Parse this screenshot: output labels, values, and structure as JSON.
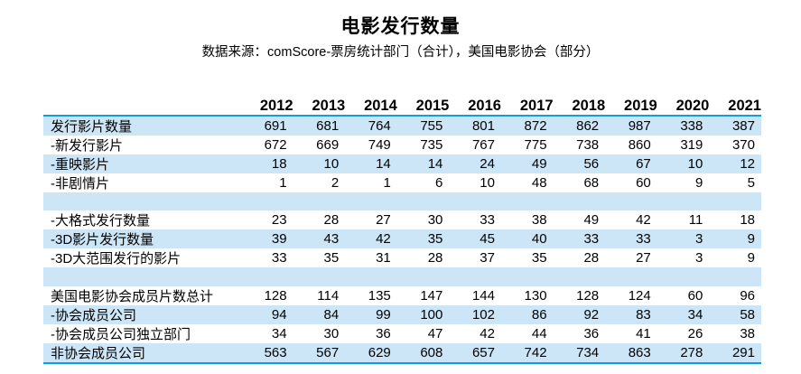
{
  "colors": {
    "row_band": "#cde6f7",
    "rule_blue": "#0f9ce8"
  },
  "chart_data": {
    "type": "table",
    "title": "电影发行数量",
    "subtitle": "数据来源：comScore-票房统计部门（合计），美国电影协会（部分）",
    "columns": [
      "2012",
      "2013",
      "2014",
      "2015",
      "2016",
      "2017",
      "2018",
      "2019",
      "2020",
      "2021"
    ],
    "rows": [
      {
        "label": "发行影片数量",
        "values": [
          691,
          681,
          764,
          755,
          801,
          872,
          862,
          987,
          338,
          387
        ]
      },
      {
        "label": "-新发行影片",
        "values": [
          672,
          669,
          749,
          735,
          767,
          775,
          738,
          860,
          319,
          370
        ]
      },
      {
        "label": "-重映影片",
        "values": [
          18,
          10,
          14,
          14,
          24,
          49,
          56,
          67,
          10,
          12
        ]
      },
      {
        "label": "-非剧情片",
        "values": [
          1,
          2,
          1,
          6,
          10,
          48,
          68,
          60,
          9,
          5
        ]
      },
      {
        "label": "",
        "values": []
      },
      {
        "label": "-大格式发行数量",
        "values": [
          23,
          28,
          27,
          30,
          33,
          38,
          49,
          42,
          11,
          18
        ]
      },
      {
        "label": "-3D影片发行数量",
        "values": [
          39,
          43,
          42,
          35,
          45,
          40,
          33,
          33,
          3,
          9
        ]
      },
      {
        "label": "-3D大范围发行的影片",
        "values": [
          33,
          35,
          31,
          28,
          37,
          35,
          28,
          27,
          3,
          9
        ]
      },
      {
        "label": "",
        "values": []
      },
      {
        "label": "美国电影协会成员片数总计",
        "values": [
          128,
          114,
          135,
          147,
          144,
          130,
          128,
          124,
          60,
          96
        ]
      },
      {
        "label": "-协会成员公司",
        "values": [
          94,
          84,
          99,
          100,
          102,
          86,
          92,
          83,
          34,
          58
        ]
      },
      {
        "label": "-协会成员公司独立部门",
        "values": [
          34,
          30,
          36,
          47,
          42,
          44,
          36,
          41,
          26,
          38
        ]
      },
      {
        "label": "非协会成员公司",
        "values": [
          563,
          567,
          629,
          608,
          657,
          742,
          734,
          863,
          278,
          291
        ]
      }
    ]
  }
}
